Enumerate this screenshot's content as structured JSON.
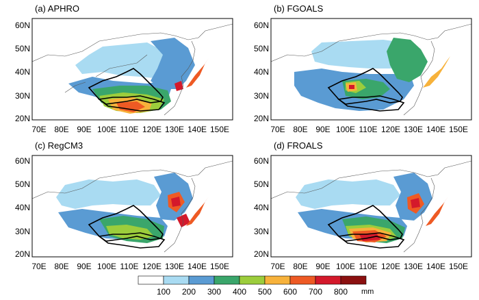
{
  "panels": [
    {
      "title": "(a)  APHRO"
    },
    {
      "title": "(b)  FGOALS"
    },
    {
      "title": "(c)  RegCM3"
    },
    {
      "title": "(d)  FROALS"
    }
  ],
  "axes": {
    "lat_ticks": [
      "20N",
      "30N",
      "40N",
      "50N",
      "60N"
    ],
    "lon_ticks": [
      "70E",
      "80E",
      "90E",
      "100E",
      "110E",
      "120E",
      "130E",
      "140E",
      "150E"
    ]
  },
  "colorbar": {
    "unit": "mm",
    "thresholds": [
      "100",
      "200",
      "300",
      "400",
      "500",
      "600",
      "700",
      "800"
    ],
    "colors": [
      "#ffffff",
      "#a9dbf2",
      "#5a9bd3",
      "#3aa66b",
      "#9ccd3c",
      "#f7b23b",
      "#ee5a24",
      "#d4192b",
      "#8b1010"
    ]
  },
  "colors": {
    "basin_outline": "#000000",
    "coast": "#555555",
    "frame": "#000000"
  }
}
